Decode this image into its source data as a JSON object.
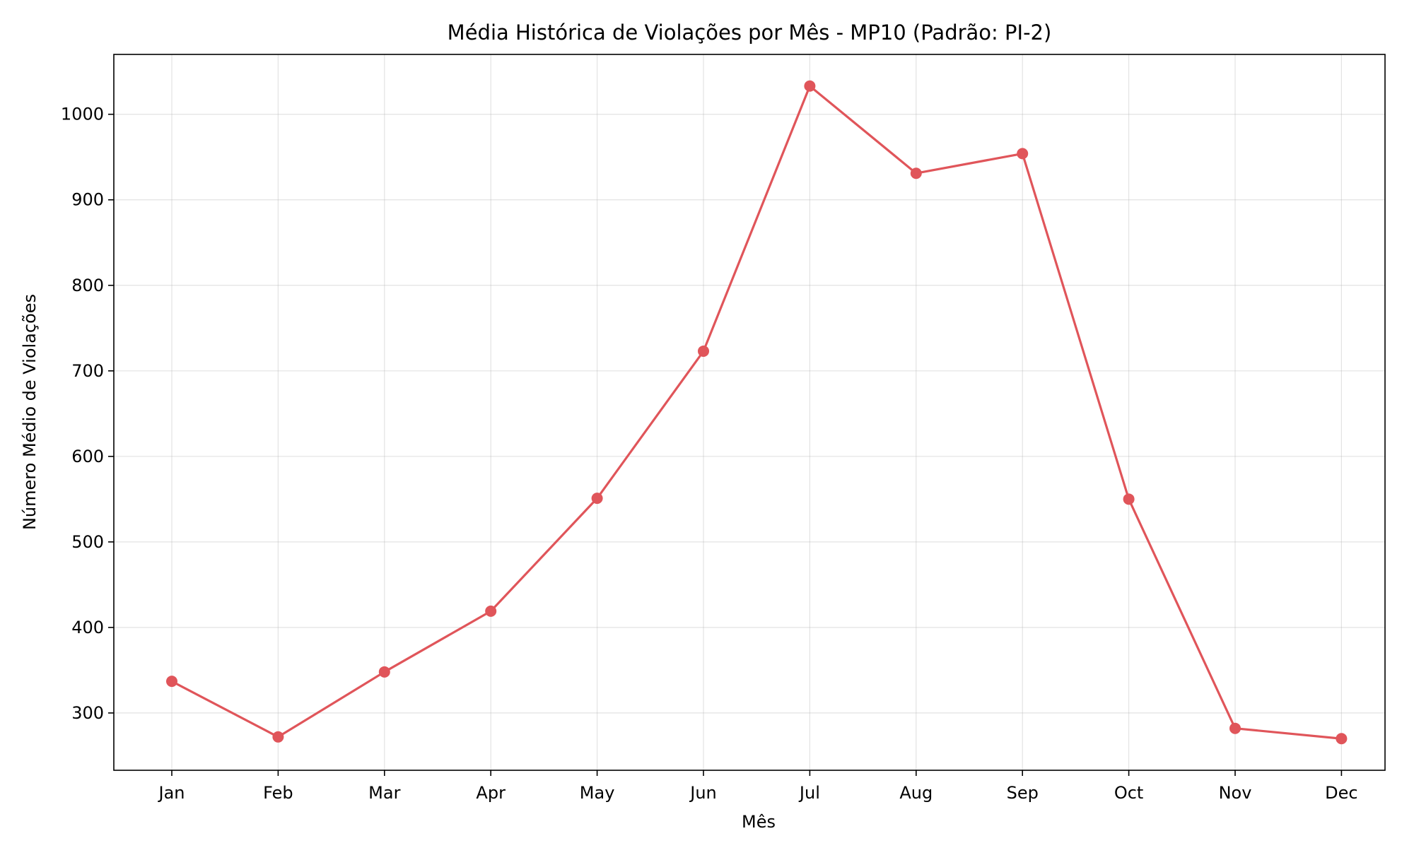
{
  "chart_data": {
    "type": "line",
    "title": "Média Histórica de Violações por Mês - MP10 (Padrão: PI-2)",
    "xlabel": "Mês",
    "ylabel": "Número Médio de Violações",
    "categories": [
      "Jan",
      "Feb",
      "Mar",
      "Apr",
      "May",
      "Jun",
      "Jul",
      "Aug",
      "Sep",
      "Oct",
      "Nov",
      "Dec"
    ],
    "series": [
      {
        "values": [
          337,
          272,
          348,
          419,
          551,
          723,
          1033,
          931,
          954,
          550,
          282,
          270
        ]
      }
    ],
    "ylim": [
      233,
      1070
    ],
    "yticks": [
      300,
      400,
      500,
      600,
      700,
      800,
      900,
      1000
    ],
    "grid": true,
    "color": "#e0555a"
  }
}
